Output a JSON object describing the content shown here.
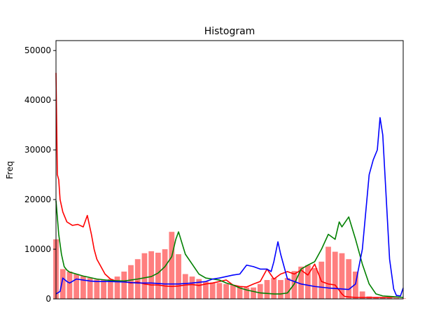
{
  "chart_data": {
    "type": "bar",
    "title": "Histogram",
    "xlabel": "",
    "ylabel": "Freq",
    "xlim": [
      0,
      255
    ],
    "ylim": [
      0,
      52000
    ],
    "grid": false,
    "yticks": [
      0,
      10000,
      20000,
      30000,
      40000,
      50000
    ],
    "ytick_labels": [
      "0",
      "10000",
      "20000",
      "30000",
      "40000",
      "50000"
    ],
    "colors": {
      "bars": "#ff7f7f",
      "red": "#ff0000",
      "green": "#008000",
      "blue": "#0000ff",
      "axes": "#000000"
    },
    "bars_series": {
      "color": "#ff7f7f",
      "x": [
        0,
        5,
        10,
        15,
        20,
        25,
        30,
        35,
        40,
        45,
        50,
        55,
        60,
        65,
        70,
        75,
        80,
        85,
        90,
        95,
        100,
        105,
        110,
        115,
        120,
        125,
        130,
        135,
        140,
        145,
        150,
        155,
        160,
        165,
        170,
        175,
        180,
        185,
        190,
        195,
        200,
        205,
        210,
        215,
        220,
        225,
        230,
        235,
        240,
        245,
        250,
        255
      ],
      "values": [
        12000,
        6000,
        5500,
        5000,
        4600,
        4200,
        3900,
        3800,
        4000,
        4500,
        5500,
        6800,
        8000,
        9200,
        9600,
        9300,
        10000,
        13500,
        9000,
        5000,
        4500,
        4000,
        3500,
        3300,
        3200,
        3000,
        2800,
        2500,
        2300,
        2300,
        3000,
        3800,
        4200,
        3800,
        4200,
        5600,
        6500,
        6800,
        6200,
        7500,
        10500,
        9500,
        9200,
        8000,
        5500,
        1500,
        500,
        300,
        200,
        200,
        200,
        100
      ]
    },
    "series": [
      {
        "name": "red",
        "color": "#ff0000",
        "x": [
          0,
          1,
          2,
          3,
          5,
          8,
          12,
          16,
          20,
          23,
          26,
          28,
          30,
          33,
          36,
          40,
          45,
          50,
          55,
          60,
          65,
          70,
          75,
          80,
          85,
          90,
          95,
          100,
          105,
          110,
          115,
          120,
          125,
          130,
          135,
          140,
          145,
          150,
          155,
          160,
          165,
          170,
          175,
          180,
          185,
          190,
          195,
          200,
          205,
          210,
          212,
          215,
          220,
          225,
          230,
          235,
          240,
          245,
          250,
          255
        ],
        "values": [
          45500,
          25000,
          24000,
          20000,
          17500,
          15500,
          14800,
          15000,
          14500,
          16800,
          13000,
          10000,
          8000,
          6500,
          5000,
          4000,
          3500,
          3500,
          3200,
          3400,
          3000,
          2800,
          2800,
          2600,
          2500,
          2600,
          2800,
          2900,
          2700,
          3000,
          3200,
          3500,
          3800,
          2800,
          2500,
          2400,
          3000,
          3500,
          6000,
          4000,
          5000,
          5500,
          5000,
          5800,
          4800,
          7000,
          3500,
          3000,
          2800,
          1000,
          500,
          400,
          300,
          300,
          300,
          300,
          300,
          300,
          400,
          300
        ]
      },
      {
        "name": "green",
        "color": "#008000",
        "x": [
          0,
          2,
          4,
          6,
          8,
          10,
          15,
          20,
          25,
          30,
          40,
          50,
          60,
          70,
          75,
          80,
          85,
          88,
          90,
          95,
          100,
          105,
          110,
          115,
          120,
          125,
          130,
          135,
          140,
          145,
          150,
          155,
          160,
          165,
          170,
          175,
          180,
          185,
          190,
          195,
          200,
          205,
          208,
          210,
          215,
          220,
          225,
          230,
          235,
          240,
          245,
          250,
          255
        ],
        "values": [
          19800,
          13000,
          9000,
          6500,
          5800,
          5400,
          5000,
          4600,
          4300,
          4000,
          3700,
          3600,
          4000,
          4500,
          5200,
          6500,
          8500,
          12000,
          13500,
          9000,
          7000,
          5000,
          4200,
          4000,
          3800,
          3200,
          2800,
          2200,
          1800,
          1500,
          1200,
          1100,
          1000,
          1000,
          1200,
          3000,
          6000,
          6800,
          7500,
          10000,
          13000,
          12000,
          15500,
          14500,
          16500,
          12000,
          7000,
          3000,
          1000,
          600,
          500,
          400,
          300
        ]
      },
      {
        "name": "blue",
        "color": "#0000ff",
        "x": [
          0,
          3,
          5,
          8,
          10,
          15,
          20,
          25,
          30,
          40,
          50,
          60,
          70,
          80,
          90,
          100,
          110,
          115,
          120,
          125,
          130,
          135,
          140,
          145,
          150,
          155,
          158,
          160,
          163,
          165,
          170,
          175,
          180,
          190,
          200,
          210,
          215,
          220,
          225,
          230,
          233,
          236,
          238,
          240,
          242,
          245,
          248,
          250,
          253,
          255
        ],
        "values": [
          1000,
          1500,
          4200,
          3500,
          3200,
          4000,
          3800,
          3600,
          3500,
          3500,
          3400,
          3200,
          3200,
          3000,
          3000,
          3200,
          3500,
          4000,
          4200,
          4500,
          4800,
          5000,
          6800,
          6500,
          6000,
          6000,
          5500,
          7500,
          11500,
          9000,
          4000,
          3500,
          3000,
          2500,
          2200,
          2000,
          1900,
          3000,
          10000,
          25000,
          28000,
          30000,
          36500,
          33000,
          23000,
          8000,
          2000,
          700,
          600,
          2200
        ]
      }
    ]
  }
}
